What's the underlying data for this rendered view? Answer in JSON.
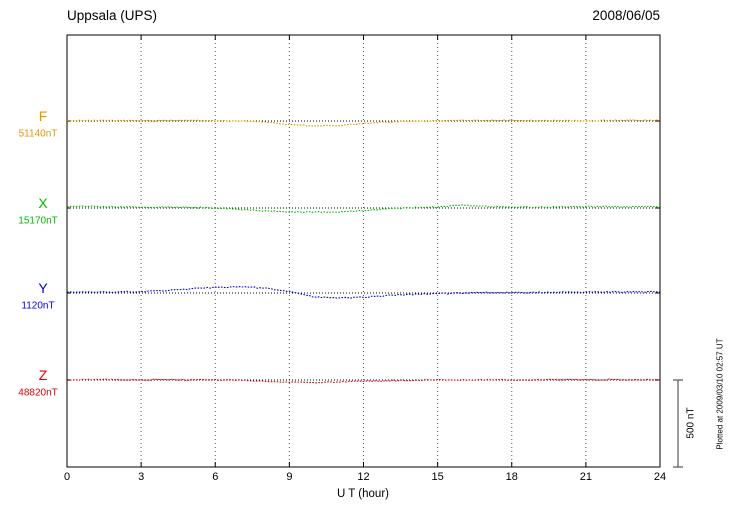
{
  "header": {
    "station": "Uppsala (UPS)",
    "date": "2008/06/05"
  },
  "axis": {
    "xlabel": "U T (hour)",
    "ticks": [
      "0",
      "3",
      "6",
      "9",
      "12",
      "15",
      "18",
      "21",
      "24"
    ]
  },
  "scale_bar": {
    "label": "500 nT",
    "nT": 500
  },
  "plotted_at": "Plotted at 2009/03/10 02:57 UT",
  "chart_data": {
    "type": "line",
    "title": "Uppsala (UPS) magnetogram 2008/06/05",
    "xlabel": "U T (hour)",
    "xlim": [
      0,
      24
    ],
    "x_hours": [
      0,
      1,
      2,
      3,
      4,
      5,
      6,
      7,
      8,
      9,
      10,
      11,
      12,
      13,
      14,
      15,
      16,
      17,
      18,
      19,
      20,
      21,
      22,
      23,
      24
    ],
    "scale_nT_per_division": 500,
    "grid": "dotted-vertical-every-3h",
    "legend_position": "left-of-traces",
    "series": [
      {
        "name": "F",
        "baseline_label": "51140nT",
        "baseline_nT": 51140,
        "color": "#e59400",
        "offsets_nT": [
          3,
          3,
          3,
          2,
          2,
          2,
          1,
          0,
          -6,
          -20,
          -29,
          -26,
          -14,
          -5,
          0,
          2,
          3,
          3,
          3,
          2,
          2,
          3,
          3,
          4,
          4
        ]
      },
      {
        "name": "X",
        "baseline_label": "15170nT",
        "baseline_nT": 15170,
        "color": "#00bb00",
        "offsets_nT": [
          8,
          8,
          7,
          5,
          4,
          3,
          0,
          -8,
          -17,
          -22,
          -23,
          -25,
          -14,
          -5,
          2,
          5,
          17,
          8,
          5,
          5,
          6,
          8,
          8,
          9,
          9
        ]
      },
      {
        "name": "Y",
        "baseline_label": "1120nT",
        "baseline_nT": 1120,
        "color": "#0000e0",
        "offsets_nT": [
          5,
          5,
          6,
          8,
          14,
          24,
          32,
          35,
          28,
          8,
          -22,
          -28,
          -24,
          -14,
          -8,
          -4,
          0,
          2,
          2,
          3,
          4,
          5,
          6,
          7,
          7
        ]
      },
      {
        "name": "Z",
        "baseline_label": "48820nT",
        "baseline_nT": 48820,
        "color": "#dd0000",
        "offsets_nT": [
          2,
          2,
          2,
          2,
          1,
          1,
          0,
          -2,
          -6,
          -13,
          -15,
          -11,
          -7,
          -4,
          -2,
          0,
          0,
          1,
          1,
          1,
          2,
          2,
          2,
          2,
          2
        ]
      }
    ]
  }
}
